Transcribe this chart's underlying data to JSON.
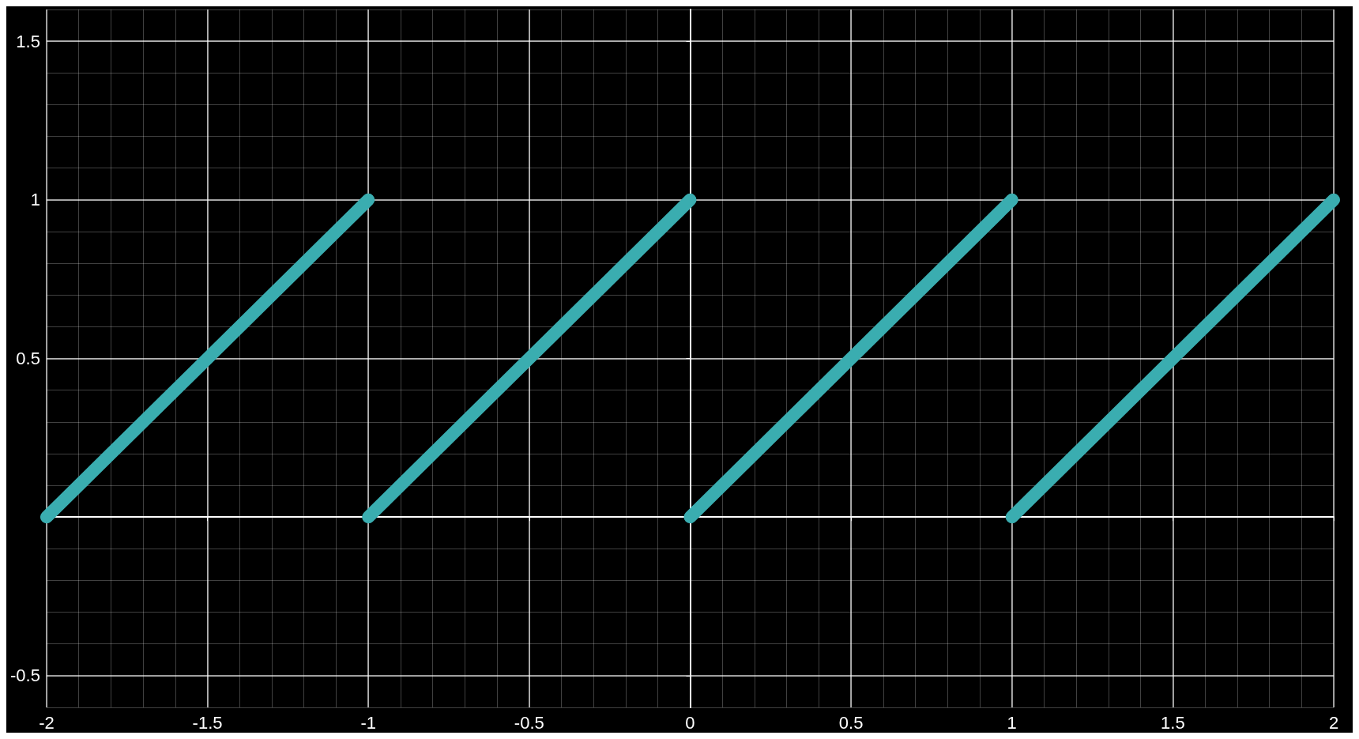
{
  "chart_data": {
    "type": "line",
    "series": [
      {
        "color": "#3aadb0",
        "x": [
          -2,
          -1
        ],
        "values": [
          0,
          1
        ]
      },
      {
        "color": "#3aadb0",
        "x": [
          -1,
          0
        ],
        "values": [
          0,
          1
        ]
      },
      {
        "color": "#3aadb0",
        "x": [
          0,
          1
        ],
        "values": [
          0,
          1
        ]
      },
      {
        "color": "#3aadb0",
        "x": [
          1,
          2
        ],
        "values": [
          0,
          1
        ]
      }
    ],
    "xlim": [
      -2,
      2
    ],
    "ylim": [
      -0.6,
      1.6
    ],
    "xticks": [
      -2,
      -1.5,
      -1,
      -0.5,
      0,
      0.5,
      1,
      1.5,
      2
    ],
    "yticks": [
      -0.5,
      {
        "value": 0,
        "label": null
      },
      0.5,
      1,
      1.5
    ],
    "grid": true,
    "line_style": "solid"
  }
}
